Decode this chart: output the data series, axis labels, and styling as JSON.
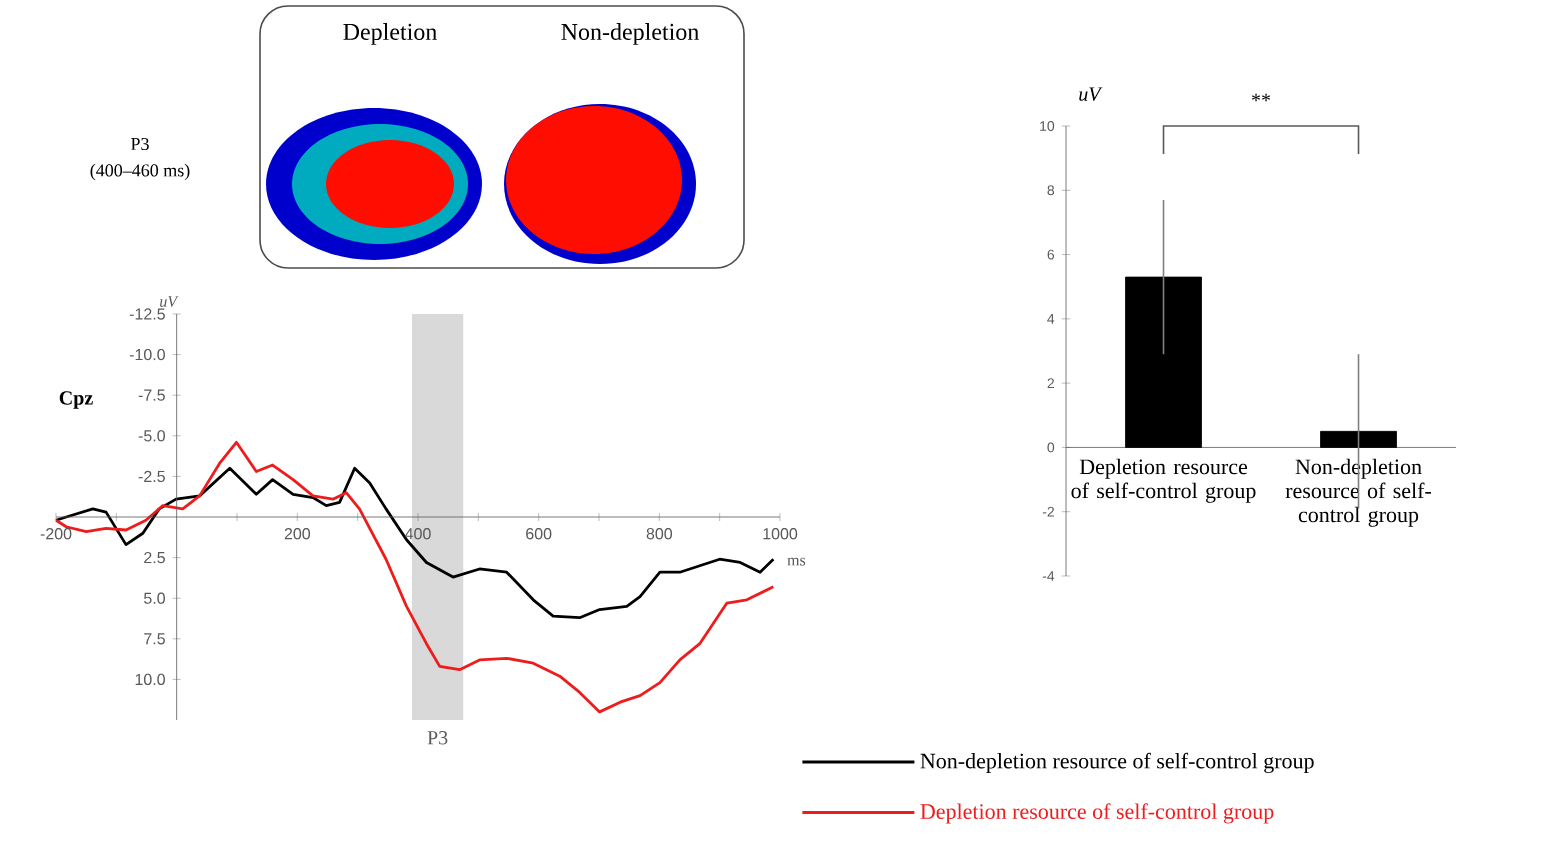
{
  "chart_data": [
    {
      "type": "line",
      "xlabel": "ms",
      "ylabel": "uV",
      "xlim": [
        -200,
        1000
      ],
      "ylim": [
        12.5,
        -12.5
      ],
      "xticks": [
        -200,
        {
          "value": -100,
          "label": null
        },
        {
          "value": 0,
          "label": null
        },
        {
          "value": 100,
          "label": null
        },
        200,
        {
          "value": 300,
          "label": null
        },
        400,
        {
          "value": 500,
          "label": null
        },
        600,
        {
          "value": 700,
          "label": null
        },
        800,
        {
          "value": 900,
          "label": null
        },
        1000
      ],
      "yticks": [
        {
          "value": -12.5,
          "label": "-12.5"
        },
        {
          "value": -10,
          "label": "-10.0"
        },
        {
          "value": -7.5,
          "label": "-7.5"
        },
        {
          "value": -5,
          "label": "-5.0"
        },
        {
          "value": -2.5,
          "label": "-2.5"
        },
        {
          "value": 2.5,
          "label": "2.5"
        },
        {
          "value": 5,
          "label": "5.0"
        },
        {
          "value": 7.5,
          "label": "7.5"
        },
        {
          "value": 10,
          "label": "10.0"
        }
      ],
      "series": [
        {
          "name": "Non-depletion resource of self-control group",
          "color": "#000000",
          "x": [
            -200,
            -183,
            -139,
            -117,
            -84,
            -56,
            -29,
            -1,
            38,
            88,
            132,
            159,
            193,
            226,
            248,
            270,
            295,
            320,
            347,
            381,
            414,
            458,
            502,
            547,
            591,
            624,
            668,
            701,
            746,
            768,
            801,
            834,
            867,
            900,
            934,
            967,
            989
          ],
          "values": [
            0.2,
            0.0,
            -0.5,
            -0.3,
            1.7,
            1.0,
            -0.5,
            -1.1,
            -1.3,
            -3.0,
            -1.4,
            -2.3,
            -1.4,
            -1.2,
            -0.7,
            -0.9,
            -3.0,
            -2.1,
            -0.5,
            1.4,
            2.8,
            3.7,
            3.2,
            3.4,
            5.1,
            6.1,
            6.2,
            5.7,
            5.5,
            4.9,
            3.4,
            3.4,
            3.0,
            2.6,
            2.8,
            3.4,
            2.6
          ]
        },
        {
          "name": "Depletion resource of self-control group",
          "color": "#ee1c1c",
          "x": [
            -200,
            -183,
            -150,
            -117,
            -84,
            -51,
            -23,
            10,
            38,
            71,
            99,
            132,
            159,
            193,
            226,
            259,
            281,
            303,
            347,
            381,
            414,
            436,
            469,
            502,
            547,
            591,
            635,
            668,
            701,
            735,
            768,
            801,
            834,
            867,
            912,
            945,
            989
          ],
          "values": [
            0.2,
            0.6,
            0.9,
            0.7,
            0.8,
            0.2,
            -0.7,
            -0.5,
            -1.3,
            -3.3,
            -4.6,
            -2.8,
            -3.2,
            -2.3,
            -1.3,
            -1.1,
            -1.5,
            -0.5,
            2.6,
            5.5,
            7.8,
            9.2,
            9.4,
            8.8,
            8.7,
            9.0,
            9.8,
            10.8,
            12.0,
            11.4,
            11.0,
            10.2,
            8.8,
            7.8,
            5.3,
            5.1,
            4.3
          ]
        }
      ],
      "bands": [
        {
          "axis": "x",
          "from": 390,
          "to": 475,
          "label": "P3",
          "color": "#d9d9d9"
        }
      ],
      "legend": "bottom right",
      "annotations": [
        "P3",
        "(400–460 ms)",
        "Depletion",
        "Non-depletion",
        "Cpz"
      ]
    },
    {
      "type": "bar",
      "ylabel": "uV",
      "color": "#000000",
      "categories": [
        "Depletion resource of self-control group",
        "Non-depletion resource of self-control group"
      ],
      "values": [
        5.3,
        0.5
      ],
      "errors": [
        2.4,
        2.4
      ],
      "ylim": [
        -4,
        10
      ],
      "yticks": [
        -4,
        -2,
        0,
        2,
        4,
        6,
        8,
        10
      ],
      "annotations": [
        "**"
      ]
    }
  ]
}
